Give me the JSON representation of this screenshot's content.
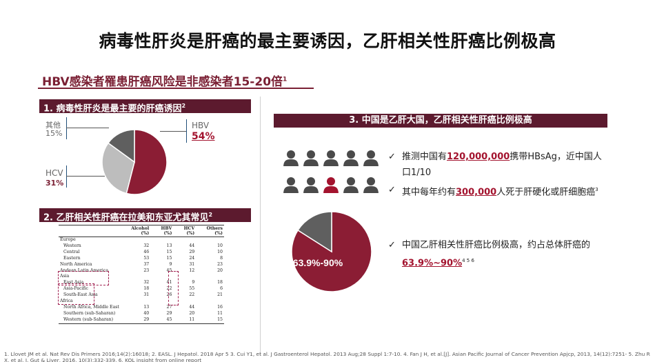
{
  "title": "病毒性肝炎是肝癌的最主要诱因，乙肝相关性肝癌比例极高",
  "subheading": {
    "text": "HBV感染者罹患肝癌风险是非感染者15-20倍",
    "sup": "1"
  },
  "section1": {
    "label": "1. 病毒性肝炎是最主要的肝癌诱因",
    "sup": "2",
    "pie": {
      "others_label": "其他",
      "others_pct": "15%",
      "hbv_label": "HBV",
      "hbv_pct": "54%",
      "hcv_label": "HCV",
      "hcv_pct": "31%"
    }
  },
  "section2": {
    "label": "2. 乙肝相关性肝癌在拉美和东亚尤其常见",
    "sup": "2",
    "table": {
      "headers": [
        "",
        "Alcohol (%)",
        "HBV (%)",
        "HCV (%)",
        "Others (%)"
      ],
      "rows": [
        {
          "kind": "region",
          "cells": [
            "Europe",
            "",
            "",
            "",
            ""
          ]
        },
        {
          "kind": "sub",
          "cells": [
            "Western",
            "32",
            "13",
            "44",
            "10"
          ]
        },
        {
          "kind": "sub",
          "cells": [
            "Central",
            "46",
            "15",
            "29",
            "10"
          ]
        },
        {
          "kind": "sub",
          "cells": [
            "Eastern",
            "53",
            "15",
            "24",
            "8"
          ]
        },
        {
          "kind": "region",
          "cells": [
            "North America",
            "37",
            "9",
            "31",
            "23"
          ]
        },
        {
          "kind": "region",
          "cells": [
            "Andean Latin America",
            "23",
            "45",
            "12",
            "20"
          ]
        },
        {
          "kind": "region",
          "cells": [
            "Asia",
            "",
            "",
            "",
            ""
          ]
        },
        {
          "kind": "sub",
          "cells": [
            "East Asia",
            "32",
            "41",
            "9",
            "18"
          ]
        },
        {
          "kind": "sub",
          "cells": [
            "Asia-Pacific",
            "18",
            "22",
            "55",
            "6"
          ]
        },
        {
          "kind": "sub",
          "cells": [
            "South-East Asia",
            "31",
            "26",
            "22",
            "21"
          ]
        },
        {
          "kind": "region",
          "cells": [
            "Africa",
            "",
            "",
            "",
            ""
          ]
        },
        {
          "kind": "sub",
          "cells": [
            "North Africa, Middle East",
            "13",
            "27",
            "44",
            "16"
          ]
        },
        {
          "kind": "sub",
          "cells": [
            "Southern (sub-Saharan)",
            "40",
            "29",
            "20",
            "11"
          ]
        },
        {
          "kind": "sub",
          "cells": [
            "Western (sub-Saharan)",
            "29",
            "45",
            "11",
            "15"
          ]
        }
      ]
    }
  },
  "section3": {
    "label": "3. 中国是乙肝大国，乙肝相关性肝癌比例极高",
    "pie_label": "63.9%-90%",
    "bullet1": {
      "pre": "推测中国有",
      "num": "120,000,000",
      "post": "携带HBsAg，近中国人口1/10"
    },
    "bullet2": {
      "pre": "其中每年约有",
      "num": "300,000",
      "post": "人死于肝硬化或肝细胞癌",
      "sup": "3"
    },
    "bullet3": {
      "pre": "中国乙肝相关性肝癌比例极高，约占总体肝癌的",
      "num": "63.9%~90%",
      "sup": "4 5 6"
    }
  },
  "chart_data": [
    {
      "type": "pie",
      "title": "",
      "categories": [
        "HBV",
        "HCV",
        "其他"
      ],
      "values": [
        54,
        31,
        15
      ]
    },
    {
      "type": "pie",
      "title": "",
      "categories": [
        "乙肝相关性肝癌",
        "其他"
      ],
      "values": [
        84,
        16
      ]
    }
  ],
  "footnote": "1. Llovet JM et al. Nat Rev Dis Primers 2016;14(2):16018;    2. EASL. J Hepatol. 2018 Apr 5    3. Cui Y1, et al. J Gastroenterol Hepatol. 2013 Aug;28 Suppl 1:7-10.   4. Fan J H, et al.[J]. Asian Pacific Journal of Cancer Prevention Apjcp, 2013, 14(12):7251-  5. Zhu R X, et al. J. Gut & Liver, 2016, 10(3):332-339.          6. KOL insight from online report",
  "colors": {
    "maroon": "#8b1d34",
    "gray_light": "#bdbdbd",
    "gray_dark": "#5f5f5f",
    "person_gray": "#4a4a4a",
    "person_red": "#a3132e"
  }
}
